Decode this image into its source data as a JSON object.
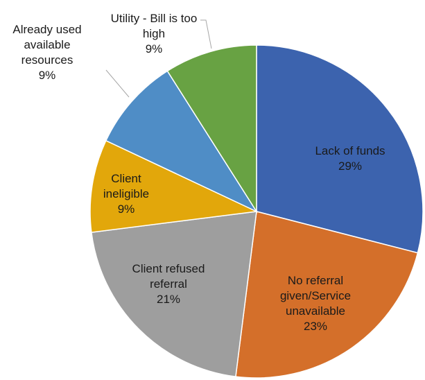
{
  "chart_data": {
    "type": "pie",
    "categories": [
      "Lack of funds",
      "No referral given/Service unavailable",
      "Client refused referral",
      "Client ineligible",
      "Already used available resources",
      "Utility - Bill is too high"
    ],
    "values": [
      29,
      23,
      21,
      9,
      9,
      9
    ],
    "value_labels": [
      "29%",
      "23%",
      "21%",
      "9%",
      "9%",
      "9%"
    ],
    "colors": [
      "#3c63ae",
      "#d46f2a",
      "#9e9e9e",
      "#e2a70b",
      "#4f8dc6",
      "#68a243"
    ]
  }
}
